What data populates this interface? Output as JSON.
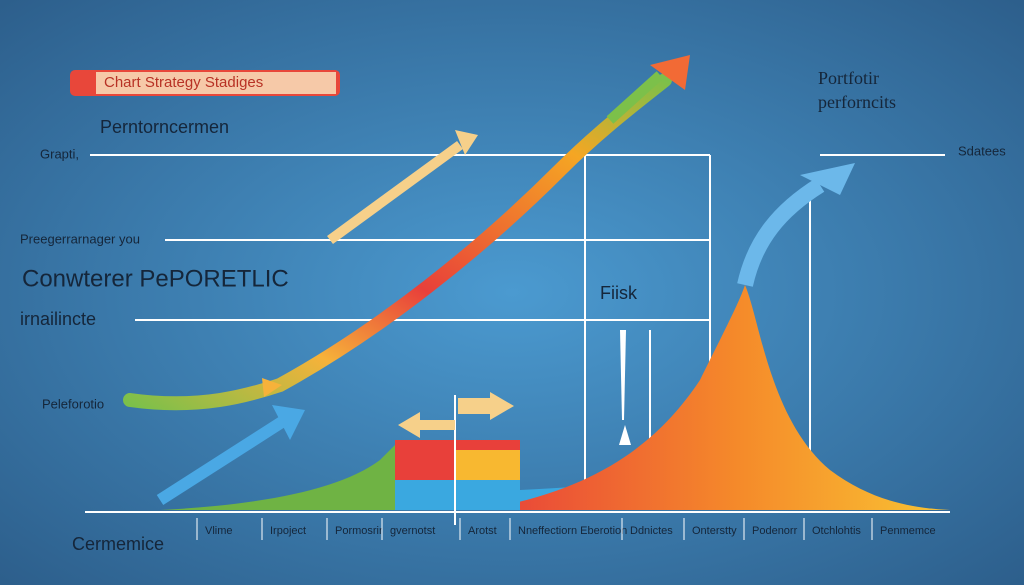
{
  "badge": "Chart Strategy Stadiges",
  "subtitle": "Perntorncermen",
  "left_labels": [
    "Grapti,",
    "Preegerrarnager you",
    "Conwterer PePORETLIC",
    "irnailincte",
    "Peleforotio",
    "Cermemice"
  ],
  "right_title": [
    "Portfotir",
    "perforncits"
  ],
  "right_label": "Sdatees",
  "center_label": "Fiisk",
  "axis_labels": [
    "Vlime",
    "Irpoject",
    "Pormosrir",
    "gvernotst",
    "Arotst",
    "Nneffectiorn Eberotion",
    "Ddnictes",
    "Onterstty",
    "Podenorr",
    "Otchlohtis",
    "Penmemce"
  ]
}
